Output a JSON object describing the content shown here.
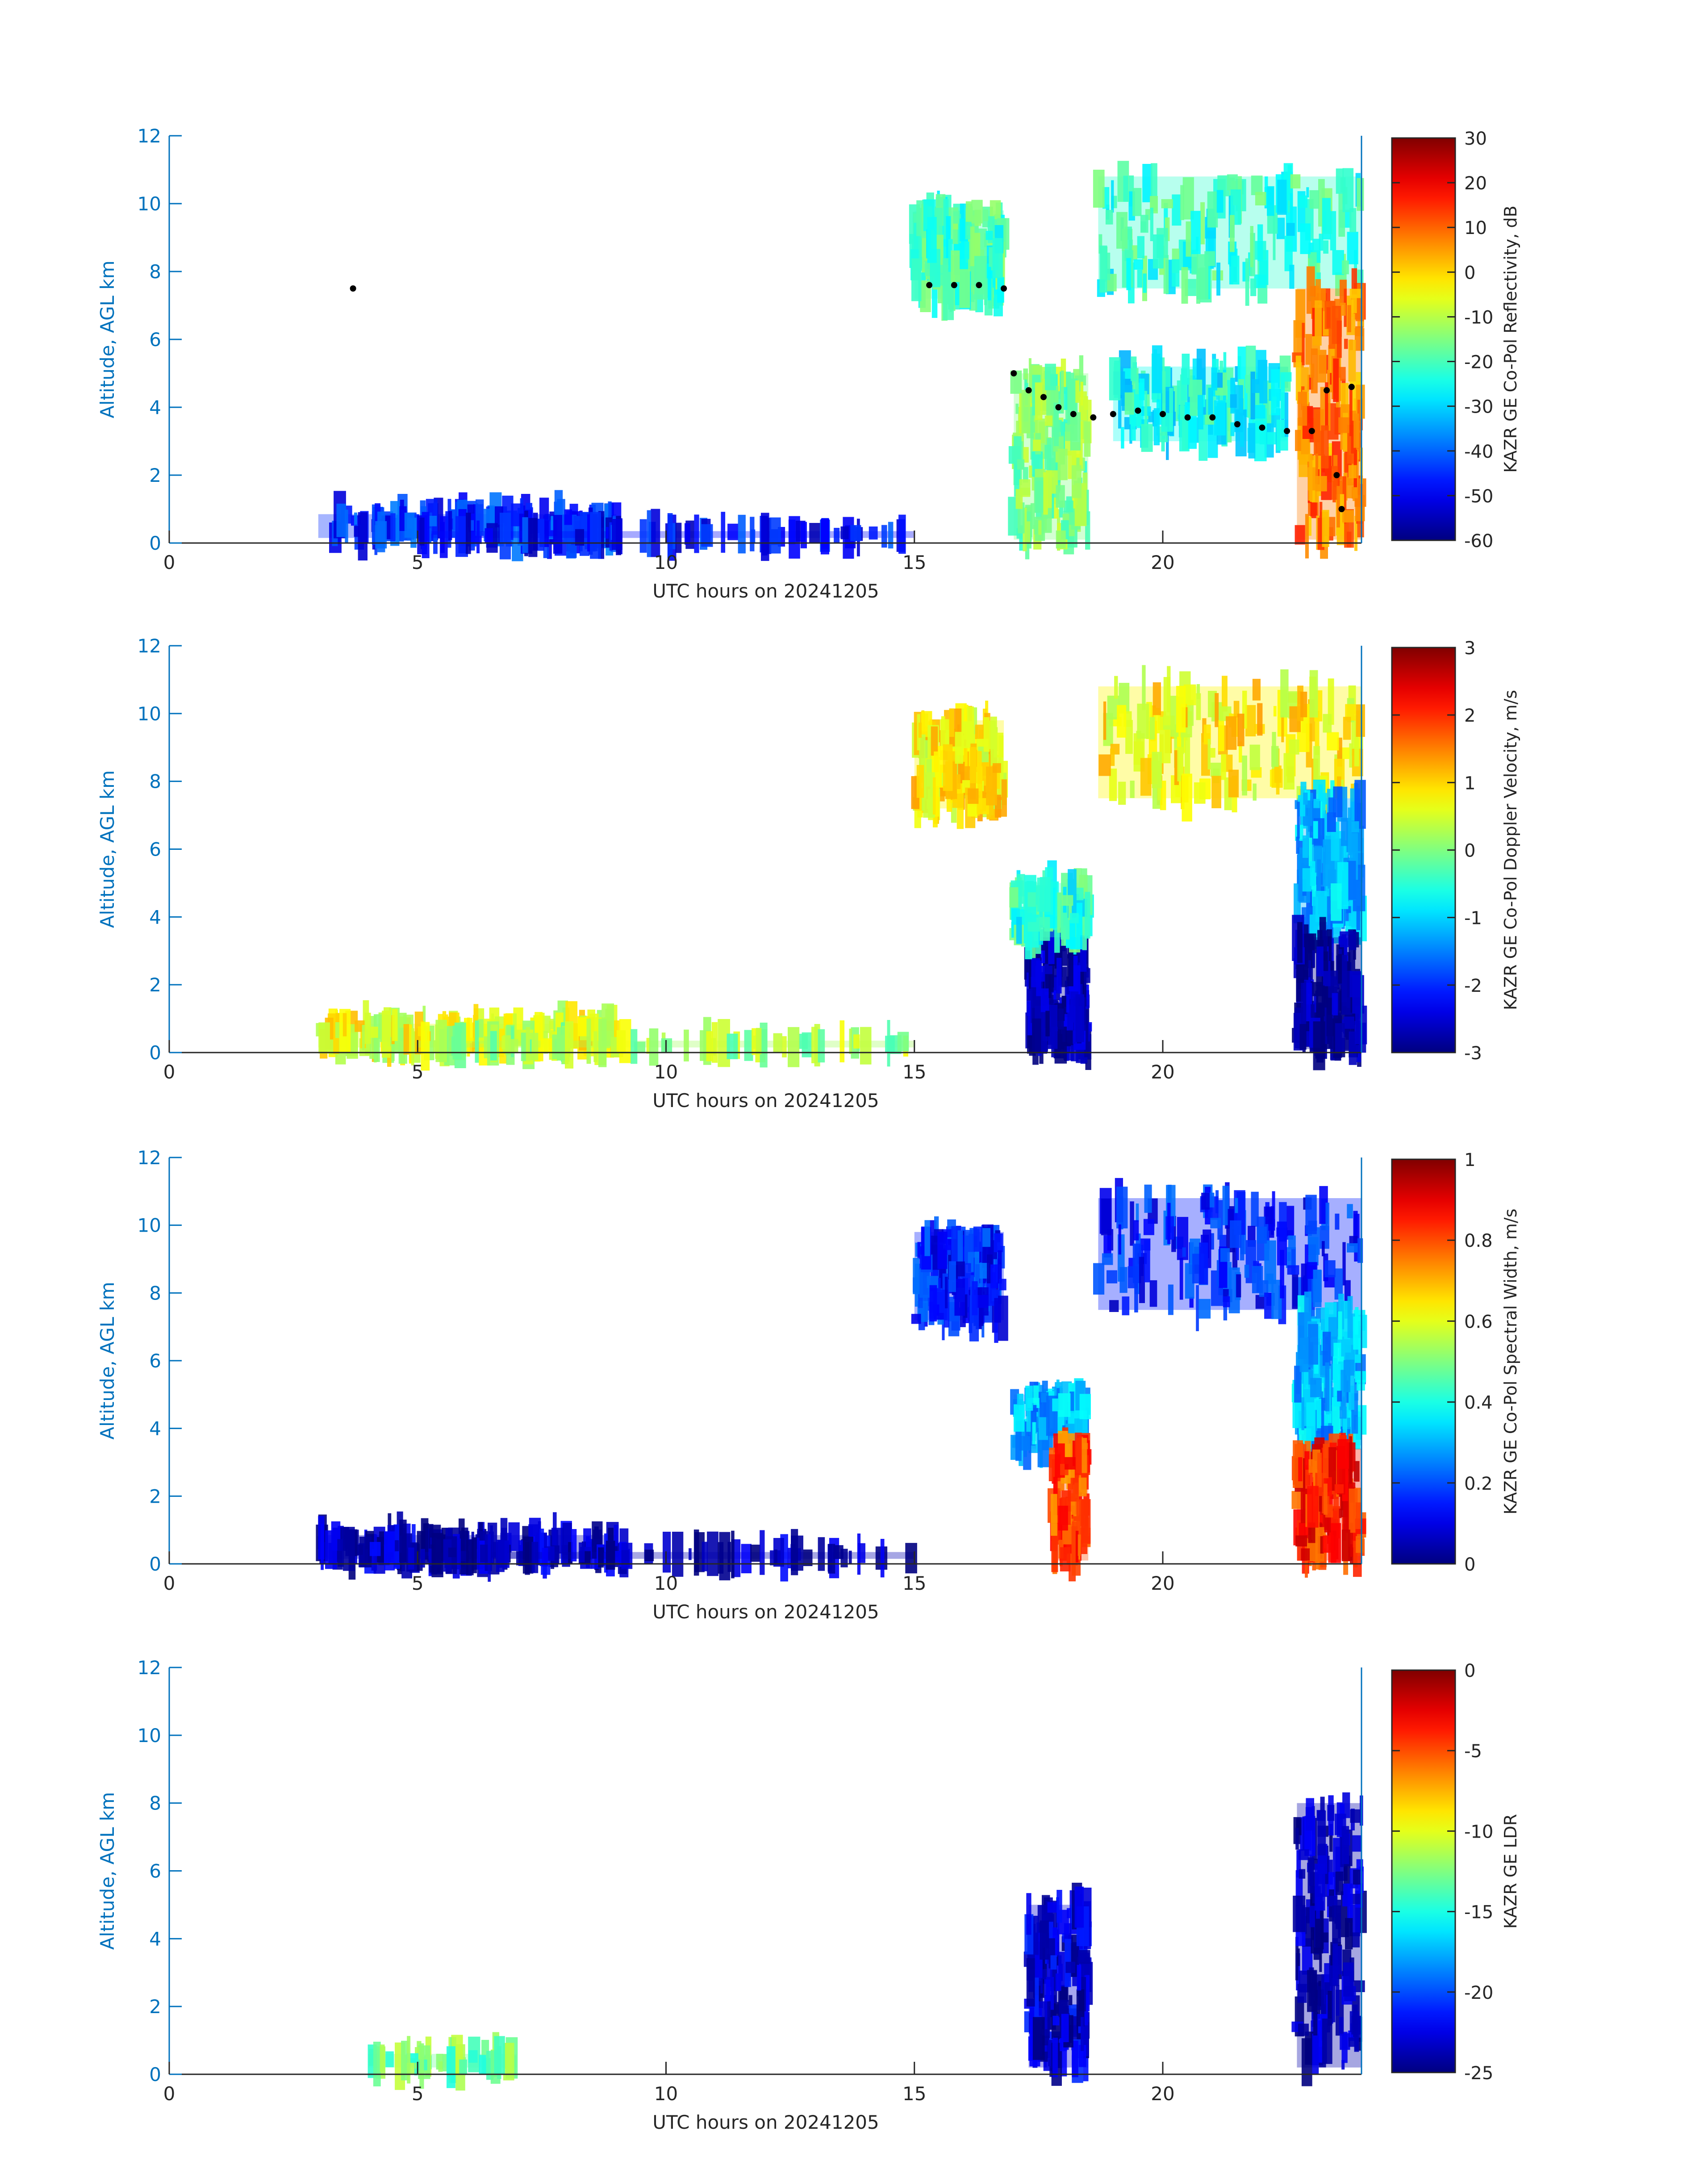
{
  "figure": {
    "colors": {
      "axis": "#0072BD",
      "text": "#262626",
      "colorbar_frame": "#262626"
    }
  },
  "chart_data": [
    {
      "type": "heatmap",
      "title": "",
      "xlabel": "UTC hours on 20241205",
      "ylabel": "Altitude, AGL km",
      "xlim": [
        0,
        24
      ],
      "ylim": [
        0,
        12
      ],
      "xticks": [
        "0",
        "5",
        "10",
        "15",
        "20"
      ],
      "yticks": [
        "0",
        "2",
        "4",
        "6",
        "8",
        "10",
        "12"
      ],
      "colormap": "jet",
      "colorbar": {
        "label": "KAZR GE Co-Pol Reflectivity, dB",
        "range": [
          -60,
          30
        ],
        "ticks": [
          "-60",
          "-50",
          "-40",
          "-30",
          "-20",
          "-10",
          "0",
          "10",
          "20",
          "30"
        ]
      },
      "regions": [
        {
          "x": [
            3.0,
            9.0
          ],
          "y": [
            0.15,
            0.85
          ],
          "value": -45
        },
        {
          "x": [
            5.0,
            15.0
          ],
          "y": [
            0.15,
            0.35
          ],
          "value": -48
        },
        {
          "x": [
            15.0,
            16.8
          ],
          "y": [
            7.2,
            9.8
          ],
          "value": -20
        },
        {
          "x": [
            17.0,
            18.5
          ],
          "y": [
            0.1,
            5.0
          ],
          "value": -15
        },
        {
          "x": [
            18.7,
            24.0
          ],
          "y": [
            7.5,
            10.8
          ],
          "value": -22
        },
        {
          "x": [
            19.0,
            22.5
          ],
          "y": [
            3.0,
            5.2
          ],
          "value": -25
        },
        {
          "x": [
            22.7,
            24.0
          ],
          "y": [
            0.1,
            7.5
          ],
          "value": 8
        }
      ],
      "markers": [
        {
          "x": 3.7,
          "y": 7.5
        },
        {
          "x": 15.3,
          "y": 7.6
        },
        {
          "x": 15.8,
          "y": 7.6
        },
        {
          "x": 16.3,
          "y": 7.6
        },
        {
          "x": 16.8,
          "y": 7.5
        },
        {
          "x": 17.0,
          "y": 5.0
        },
        {
          "x": 17.3,
          "y": 4.5
        },
        {
          "x": 17.6,
          "y": 4.3
        },
        {
          "x": 17.9,
          "y": 4.0
        },
        {
          "x": 18.2,
          "y": 3.8
        },
        {
          "x": 18.6,
          "y": 3.7
        },
        {
          "x": 19.0,
          "y": 3.8
        },
        {
          "x": 19.5,
          "y": 3.9
        },
        {
          "x": 20.0,
          "y": 3.8
        },
        {
          "x": 20.5,
          "y": 3.7
        },
        {
          "x": 21.0,
          "y": 3.7
        },
        {
          "x": 21.5,
          "y": 3.5
        },
        {
          "x": 22.0,
          "y": 3.4
        },
        {
          "x": 22.5,
          "y": 3.3
        },
        {
          "x": 23.0,
          "y": 3.3
        },
        {
          "x": 23.3,
          "y": 4.5
        },
        {
          "x": 23.5,
          "y": 2.0
        },
        {
          "x": 23.6,
          "y": 1.0
        },
        {
          "x": 23.8,
          "y": 4.6
        }
      ]
    },
    {
      "type": "heatmap",
      "title": "",
      "xlabel": "UTC hours on 20241205",
      "ylabel": "Altitude, AGL km",
      "xlim": [
        0,
        24
      ],
      "ylim": [
        0,
        12
      ],
      "xticks": [
        "0",
        "5",
        "10",
        "15",
        "20"
      ],
      "yticks": [
        "0",
        "2",
        "4",
        "6",
        "8",
        "10",
        "12"
      ],
      "colormap": "jet",
      "colorbar": {
        "label": "KAZR GE Co-Pol Doppler Velocity, m/s",
        "range": [
          -3,
          3
        ],
        "ticks": [
          "-3",
          "-2",
          "-1",
          "0",
          "1",
          "2",
          "3"
        ]
      },
      "regions": [
        {
          "x": [
            3.0,
            9.0
          ],
          "y": [
            0.15,
            0.85
          ],
          "value": 0.6
        },
        {
          "x": [
            5.0,
            15.0
          ],
          "y": [
            0.15,
            0.35
          ],
          "value": 0.2
        },
        {
          "x": [
            15.0,
            16.8
          ],
          "y": [
            7.2,
            9.8
          ],
          "value": 0.8
        },
        {
          "x": [
            17.3,
            18.5
          ],
          "y": [
            0.1,
            3.4
          ],
          "value": -2.8
        },
        {
          "x": [
            17.0,
            18.5
          ],
          "y": [
            3.4,
            5.0
          ],
          "value": -0.5
        },
        {
          "x": [
            18.7,
            24.0
          ],
          "y": [
            7.5,
            10.8
          ],
          "value": 0.8
        },
        {
          "x": [
            22.7,
            24.0
          ],
          "y": [
            3.5,
            7.5
          ],
          "value": -1.2
        },
        {
          "x": [
            22.7,
            24.0
          ],
          "y": [
            0.1,
            3.4
          ],
          "value": -2.9
        }
      ]
    },
    {
      "type": "heatmap",
      "title": "",
      "xlabel": "UTC hours on 20241205",
      "ylabel": "Altitude, AGL km",
      "xlim": [
        0,
        24
      ],
      "ylim": [
        0,
        12
      ],
      "xticks": [
        "0",
        "5",
        "10",
        "15",
        "20"
      ],
      "yticks": [
        "0",
        "2",
        "4",
        "6",
        "8",
        "10",
        "12"
      ],
      "colormap": "jet",
      "colorbar": {
        "label": "KAZR GE Co-Pol Spectral Width, m/s",
        "range": [
          0,
          1
        ],
        "ticks": [
          "0",
          "0.2",
          "0.4",
          "0.6",
          "0.8",
          "1"
        ]
      },
      "regions": [
        {
          "x": [
            3.0,
            9.0
          ],
          "y": [
            0.15,
            0.85
          ],
          "value": 0.05
        },
        {
          "x": [
            5.0,
            15.0
          ],
          "y": [
            0.15,
            0.35
          ],
          "value": 0.05
        },
        {
          "x": [
            15.0,
            16.8
          ],
          "y": [
            7.2,
            9.8
          ],
          "value": 0.15
        },
        {
          "x": [
            17.0,
            18.5
          ],
          "y": [
            3.4,
            5.0
          ],
          "value": 0.3
        },
        {
          "x": [
            17.8,
            18.5
          ],
          "y": [
            0.1,
            3.4
          ],
          "value": 0.8
        },
        {
          "x": [
            18.7,
            24.0
          ],
          "y": [
            7.5,
            10.8
          ],
          "value": 0.15
        },
        {
          "x": [
            22.7,
            24.0
          ],
          "y": [
            3.5,
            7.5
          ],
          "value": 0.3
        },
        {
          "x": [
            22.7,
            24.0
          ],
          "y": [
            0.1,
            3.4
          ],
          "value": 0.85
        }
      ]
    },
    {
      "type": "heatmap",
      "title": "",
      "xlabel": "UTC hours on 20241205",
      "ylabel": "Altitude, AGL km",
      "xlim": [
        0,
        24
      ],
      "ylim": [
        0,
        12
      ],
      "xticks": [
        "0",
        "5",
        "10",
        "15",
        "20"
      ],
      "yticks": [
        "0",
        "2",
        "4",
        "6",
        "8",
        "10",
        "12"
      ],
      "colormap": "jet",
      "colorbar": {
        "label": "KAZR GE LDR",
        "range": [
          -25,
          0
        ],
        "ticks": [
          "-25",
          "-20",
          "-15",
          "-10",
          "-5",
          "0"
        ]
      },
      "regions": [
        {
          "x": [
            4.0,
            7.0
          ],
          "y": [
            0.2,
            0.6
          ],
          "value": -13
        },
        {
          "x": [
            17.3,
            18.5
          ],
          "y": [
            0.2,
            5.0
          ],
          "value": -23
        },
        {
          "x": [
            22.7,
            24.0
          ],
          "y": [
            0.2,
            8.0
          ],
          "value": -24
        }
      ]
    }
  ]
}
